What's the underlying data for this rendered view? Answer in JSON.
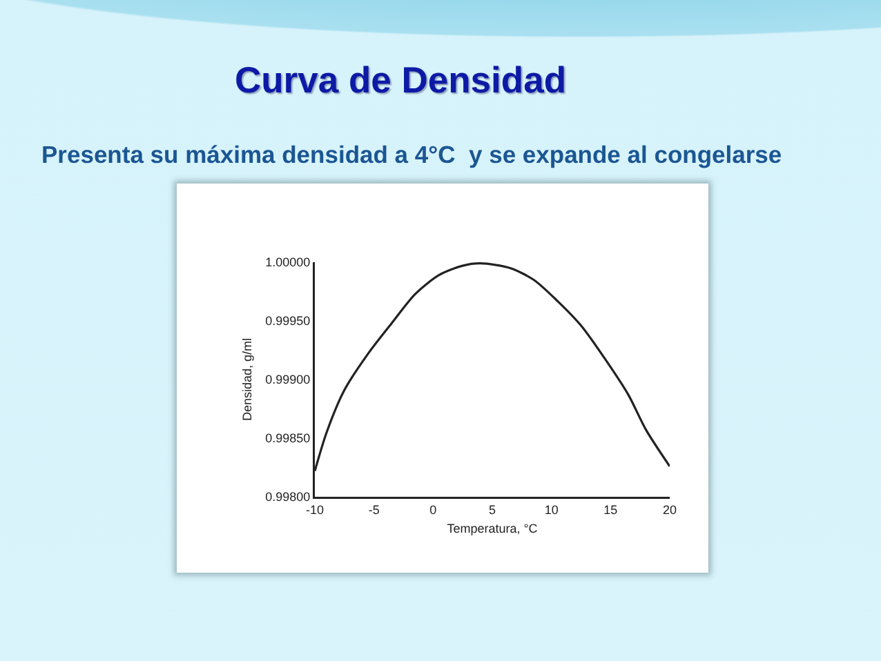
{
  "chart_data": {
    "type": "line",
    "title": "Curva de Densidad",
    "subtitle": "Presenta su máxima densidad a 4°C  y se expande al congelarse",
    "xlabel": "Temperatura, °C",
    "ylabel": "Densidad, g/ml",
    "x": [
      -10,
      -9,
      -7.5,
      -5.5,
      -3.5,
      -1.5,
      0.5,
      2.5,
      4,
      6.5,
      8.5,
      10.5,
      12.5,
      14.5,
      16.5,
      18,
      20
    ],
    "series": [
      {
        "color": "#222222",
        "values": [
          0.99822,
          0.99855,
          0.99891,
          0.99922,
          0.99948,
          0.99973,
          0.99989,
          0.99997,
          0.99999,
          0.99995,
          0.99985,
          0.99967,
          0.99946,
          0.99918,
          0.99887,
          0.99857,
          0.99826
        ]
      }
    ],
    "xlim": [
      -10,
      20
    ],
    "ylim": [
      0.998,
      1.0
    ],
    "xticks": [
      -10,
      -5,
      0,
      5,
      10,
      15,
      20
    ],
    "yticks": [
      {
        "value": 0.998,
        "label": "0.99800"
      },
      {
        "value": 0.9985,
        "label": "0.99850"
      },
      {
        "value": 0.999,
        "label": "0.99900"
      },
      {
        "value": 0.9995,
        "label": "0.99950"
      },
      {
        "value": 1.0,
        "label": "1.00000"
      }
    ],
    "grid": false,
    "marker": "none",
    "line_style": "solid"
  }
}
